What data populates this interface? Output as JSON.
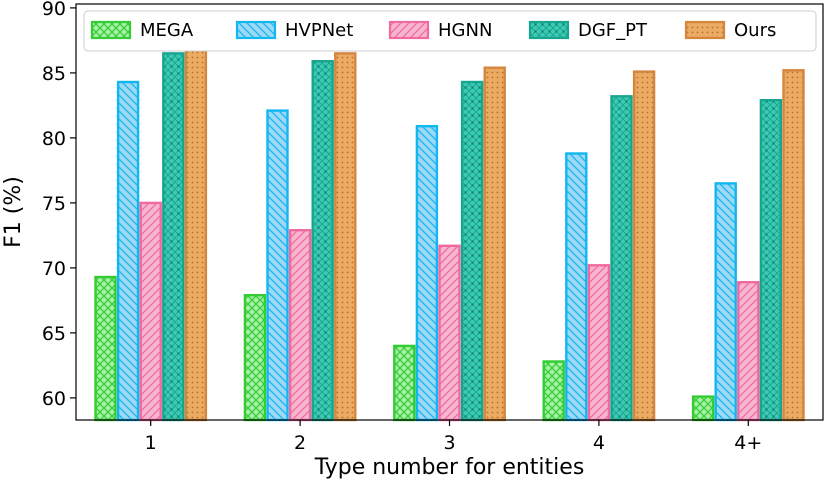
{
  "chart_data": {
    "type": "bar",
    "title": "",
    "xlabel": "Type number for entities",
    "ylabel": "F1 (%)",
    "categories": [
      "1",
      "2",
      "3",
      "4",
      "4+"
    ],
    "ylim": [
      58.3,
      90.3
    ],
    "yticks": [
      60,
      65,
      70,
      75,
      80,
      85,
      90
    ],
    "grid": false,
    "legend_position": "top",
    "series": [
      {
        "name": "MEGA",
        "values": [
          69.3,
          67.9,
          64.0,
          62.8,
          60.1
        ],
        "fill": "#a6f0a6",
        "edge": "#33cc33",
        "pattern": "crosshatch"
      },
      {
        "name": "HVPNet",
        "values": [
          84.3,
          82.1,
          80.9,
          78.8,
          76.5
        ],
        "fill": "#9fd8f5",
        "edge": "#11b7f0",
        "pattern": "backslash"
      },
      {
        "name": "HGNN",
        "values": [
          75.0,
          72.9,
          71.7,
          70.2,
          68.9
        ],
        "fill": "#f7b6cf",
        "edge": "#f06aa0",
        "pattern": "slash"
      },
      {
        "name": "DGF_PT",
        "values": [
          86.5,
          85.9,
          84.3,
          83.2,
          82.9
        ],
        "fill": "#3ec9b3",
        "edge": "#17a590",
        "pattern": "dots-cross"
      },
      {
        "name": "Ours",
        "values": [
          86.9,
          86.5,
          85.4,
          85.1,
          85.2
        ],
        "fill": "#ecab63",
        "edge": "#d4863c",
        "pattern": "dots"
      }
    ]
  }
}
